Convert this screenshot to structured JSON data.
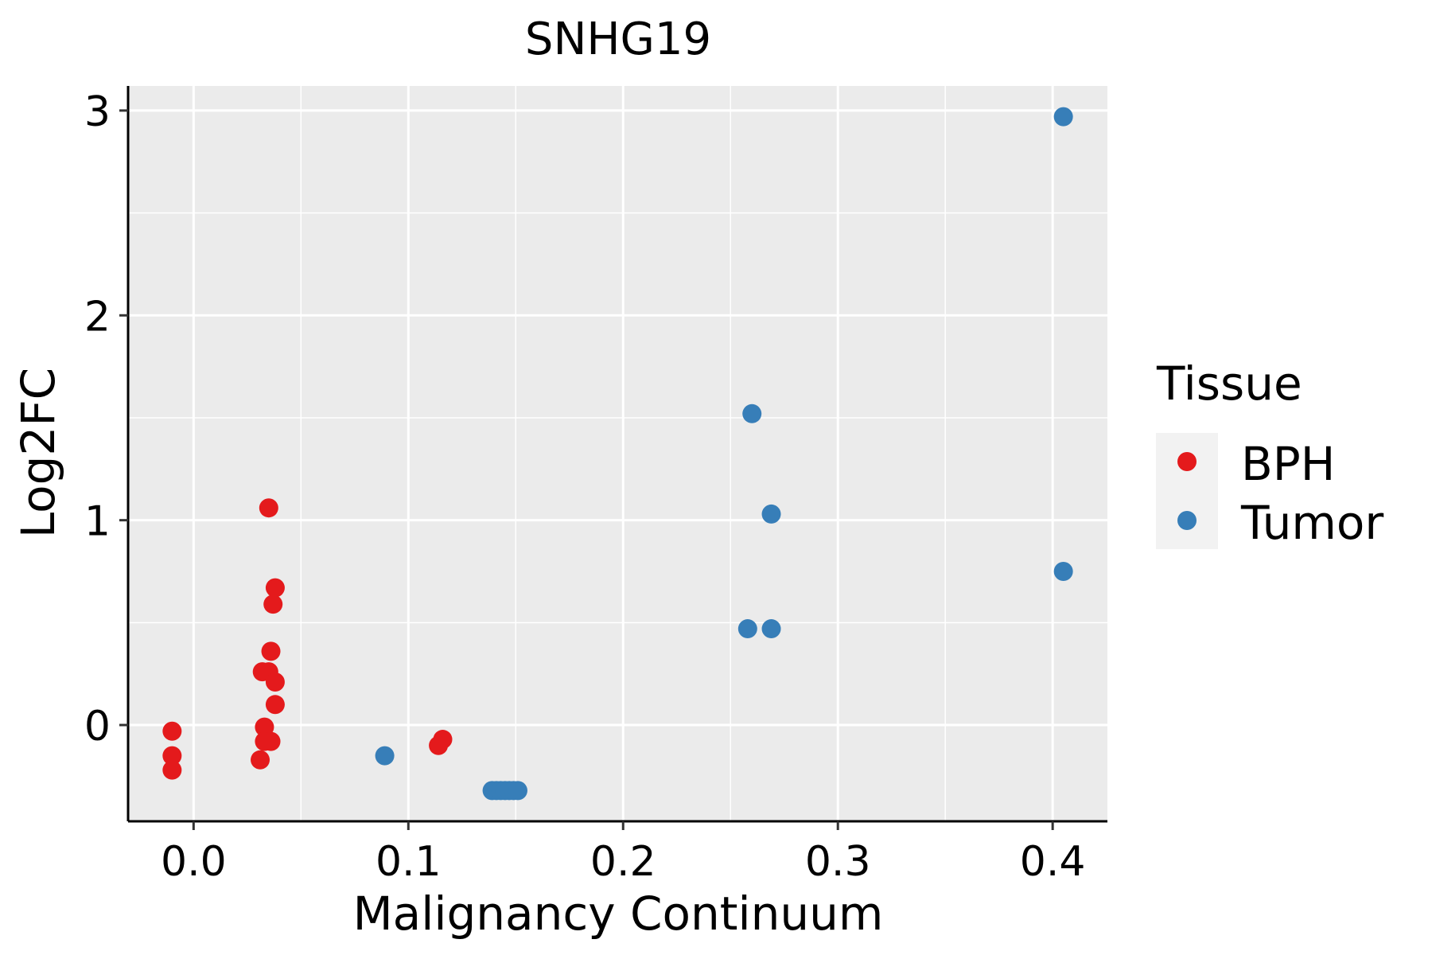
{
  "chart_data": {
    "type": "scatter",
    "title": "SNHG19",
    "xlabel": "Malignancy Continuum",
    "ylabel": "Log2FC",
    "xlim": [
      -0.0305,
      0.4255
    ],
    "ylim": [
      -0.47,
      3.12
    ],
    "x_ticks": [
      0.0,
      0.1,
      0.2,
      0.3,
      0.4
    ],
    "x_tick_labels": [
      "0.0",
      "0.1",
      "0.2",
      "0.3",
      "0.4"
    ],
    "y_ticks": [
      0,
      1,
      2,
      3
    ],
    "y_tick_labels": [
      "0",
      "1",
      "2",
      "3"
    ],
    "grid": true,
    "legend": {
      "title": "Tissue",
      "position": "right",
      "entries": [
        {
          "label": "BPH",
          "color": "#E41A1C"
        },
        {
          "label": "Tumor",
          "color": "#377EB8"
        }
      ]
    },
    "series": [
      {
        "name": "BPH",
        "color": "#E41A1C",
        "points": [
          {
            "x": -0.01,
            "y": -0.03
          },
          {
            "x": -0.01,
            "y": -0.15
          },
          {
            "x": -0.01,
            "y": -0.22
          },
          {
            "x": 0.035,
            "y": 1.06
          },
          {
            "x": 0.038,
            "y": 0.67
          },
          {
            "x": 0.037,
            "y": 0.59
          },
          {
            "x": 0.036,
            "y": 0.36
          },
          {
            "x": 0.032,
            "y": 0.26
          },
          {
            "x": 0.035,
            "y": 0.26
          },
          {
            "x": 0.038,
            "y": 0.21
          },
          {
            "x": 0.038,
            "y": 0.1
          },
          {
            "x": 0.033,
            "y": -0.01
          },
          {
            "x": 0.033,
            "y": -0.08
          },
          {
            "x": 0.036,
            "y": -0.08
          },
          {
            "x": 0.031,
            "y": -0.17
          },
          {
            "x": 0.116,
            "y": -0.07
          },
          {
            "x": 0.114,
            "y": -0.1
          }
        ]
      },
      {
        "name": "Tumor",
        "color": "#377EB8",
        "points": [
          {
            "x": 0.089,
            "y": -0.15
          },
          {
            "x": 0.139,
            "y": -0.32
          },
          {
            "x": 0.141,
            "y": -0.32
          },
          {
            "x": 0.143,
            "y": -0.32
          },
          {
            "x": 0.145,
            "y": -0.32
          },
          {
            "x": 0.147,
            "y": -0.32
          },
          {
            "x": 0.149,
            "y": -0.32
          },
          {
            "x": 0.151,
            "y": -0.32
          },
          {
            "x": 0.26,
            "y": 1.52
          },
          {
            "x": 0.269,
            "y": 1.03
          },
          {
            "x": 0.258,
            "y": 0.47
          },
          {
            "x": 0.269,
            "y": 0.47
          },
          {
            "x": 0.405,
            "y": 2.97
          },
          {
            "x": 0.405,
            "y": 0.75
          }
        ]
      }
    ]
  }
}
